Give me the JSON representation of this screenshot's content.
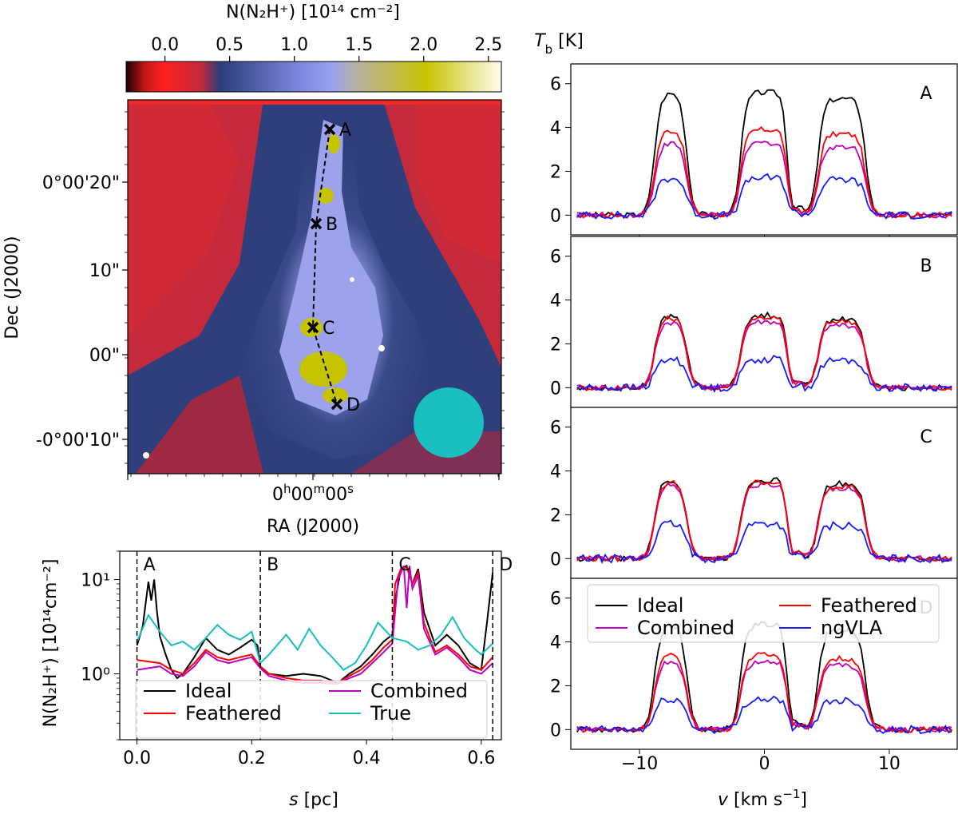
{
  "colorbar": {
    "label": "N(N2H+) [10^14 cm^-2]",
    "label_text": "N(N₂H⁺) [10¹⁴ cm⁻²]",
    "ticks": [
      "0.0",
      "0.5",
      "1.0",
      "1.5",
      "2.0",
      "2.5"
    ],
    "range": [
      -0.3,
      2.6
    ],
    "colors": [
      "#1a0000",
      "#e0232d",
      "#c42a3b",
      "#2b3d7a",
      "#9ba2f0",
      "#c6c400",
      "#fffdf0"
    ]
  },
  "map": {
    "ylabel": "Dec (J2000)",
    "xlabel": "RA (J2000)",
    "xtick": "0h00m00s",
    "yticks": [
      "0°00'20\"",
      "10\"",
      "00\"",
      "-0°00'10\""
    ],
    "markers": [
      "A",
      "B",
      "C",
      "D"
    ],
    "beam_color": "#1abfbf"
  },
  "chart_data": [
    {
      "type": "line",
      "panel": "column-density-cut",
      "xlabel": "s [pc]",
      "ylabel": "N(N2H+) [10^14 cm^-2]",
      "ylabel_text": "N(N₂H⁺) [10¹⁴cm⁻²]",
      "xlim": [
        -0.03,
        0.635
      ],
      "ylim": [
        0.2,
        20
      ],
      "yscale": "log",
      "xticks": [
        "0.0",
        "0.2",
        "0.4",
        "0.6"
      ],
      "yticks": [
        "10^0",
        "10^1"
      ],
      "ytick_text": [
        "10⁰",
        "10¹"
      ],
      "vlines": [
        {
          "x": 0.0,
          "label": "A"
        },
        {
          "x": 0.215,
          "label": "B"
        },
        {
          "x": 0.445,
          "label": "C"
        },
        {
          "x": 0.62,
          "label": "D"
        }
      ],
      "legend": "lower-center",
      "series": [
        {
          "name": "Ideal",
          "color": "#000000",
          "x": [
            0,
            0.01,
            0.02,
            0.025,
            0.03,
            0.035,
            0.04,
            0.05,
            0.06,
            0.07,
            0.08,
            0.1,
            0.12,
            0.14,
            0.16,
            0.18,
            0.2,
            0.21,
            0.215,
            0.23,
            0.26,
            0.29,
            0.32,
            0.34,
            0.35,
            0.37,
            0.39,
            0.41,
            0.43,
            0.445,
            0.45,
            0.46,
            0.47,
            0.48,
            0.49,
            0.5,
            0.52,
            0.54,
            0.56,
            0.58,
            0.6,
            0.61,
            0.62
          ],
          "y": [
            2.0,
            3.2,
            9.5,
            6.0,
            10,
            4.5,
            2.5,
            1.6,
            1.1,
            0.9,
            1.0,
            1.5,
            2.4,
            1.8,
            1.6,
            1.9,
            2.3,
            2.0,
            1.2,
            1.0,
            0.95,
            1.0,
            0.95,
            0.85,
            0.8,
            1.0,
            1.2,
            1.6,
            2.2,
            2.6,
            6.0,
            13,
            14,
            9,
            13,
            4.5,
            2.0,
            2.6,
            2.0,
            1.3,
            1.1,
            3.5,
            12
          ]
        },
        {
          "name": "Feathered",
          "color": "#ff0000",
          "x": [
            0,
            0.02,
            0.04,
            0.06,
            0.08,
            0.1,
            0.12,
            0.14,
            0.16,
            0.18,
            0.2,
            0.215,
            0.23,
            0.26,
            0.29,
            0.32,
            0.35,
            0.37,
            0.39,
            0.41,
            0.43,
            0.445,
            0.45,
            0.46,
            0.47,
            0.48,
            0.49,
            0.5,
            0.52,
            0.54,
            0.56,
            0.58,
            0.6,
            0.62
          ],
          "y": [
            1.4,
            1.35,
            1.3,
            1.1,
            1.0,
            1.3,
            1.8,
            1.5,
            1.4,
            1.5,
            1.6,
            1.2,
            1.0,
            0.9,
            0.85,
            0.85,
            0.8,
            0.95,
            1.1,
            1.4,
            1.9,
            2.3,
            9,
            13,
            13.5,
            9,
            12,
            3.5,
            1.7,
            2.0,
            1.6,
            1.2,
            1.1,
            1.5
          ]
        },
        {
          "name": "Combined",
          "color": "#bf00bf",
          "x": [
            0,
            0.02,
            0.04,
            0.06,
            0.08,
            0.1,
            0.12,
            0.14,
            0.16,
            0.18,
            0.2,
            0.215,
            0.23,
            0.26,
            0.29,
            0.32,
            0.35,
            0.37,
            0.39,
            0.41,
            0.43,
            0.445,
            0.455,
            0.465,
            0.47,
            0.475,
            0.48,
            0.49,
            0.5,
            0.52,
            0.54,
            0.56,
            0.58,
            0.6,
            0.62
          ],
          "y": [
            1.1,
            1.15,
            1.2,
            1.0,
            0.95,
            1.2,
            1.7,
            1.4,
            1.3,
            1.4,
            1.5,
            1.15,
            0.95,
            0.85,
            0.8,
            0.8,
            0.78,
            0.9,
            1.0,
            1.3,
            1.7,
            2.1,
            10,
            14,
            5,
            14,
            8,
            11,
            3.0,
            1.6,
            1.9,
            1.5,
            1.1,
            1.0,
            1.3
          ]
        },
        {
          "name": "True",
          "color": "#17bfbf",
          "x": [
            0,
            0.02,
            0.04,
            0.06,
            0.08,
            0.1,
            0.12,
            0.14,
            0.16,
            0.18,
            0.2,
            0.215,
            0.23,
            0.26,
            0.28,
            0.3,
            0.32,
            0.34,
            0.36,
            0.38,
            0.4,
            0.42,
            0.445,
            0.47,
            0.49,
            0.51,
            0.53,
            0.55,
            0.57,
            0.59,
            0.6,
            0.62
          ],
          "y": [
            2.2,
            4.2,
            2.8,
            2.0,
            2.2,
            1.8,
            2.4,
            3.3,
            2.6,
            2.3,
            2.8,
            1.3,
            1.6,
            2.6,
            1.8,
            3.0,
            2.0,
            1.5,
            1.1,
            1.3,
            2.0,
            3.5,
            2.4,
            2.2,
            1.8,
            2.0,
            2.6,
            4.0,
            2.4,
            1.8,
            1.6,
            2.1
          ]
        }
      ]
    },
    {
      "type": "line",
      "panel": "spectra",
      "xlabel": "v [km s^-1]",
      "xlabel_text": "v [km s⁻¹]",
      "ylabel": "Tb [K]",
      "xlim": [
        -15.5,
        15.5
      ],
      "ylim": [
        -0.9,
        6.9
      ],
      "xticks": [
        "−10",
        "0",
        "10"
      ],
      "yticks": [
        "0",
        "2",
        "4",
        "6"
      ],
      "legend": "top",
      "series_names": [
        "Ideal",
        "Combined",
        "Feathered",
        "ngVLA"
      ],
      "series_colors": [
        "#000000",
        "#bf00bf",
        "#ff0000",
        "#1a1aff"
      ],
      "panels": [
        {
          "label": "A",
          "peaks": {
            "Ideal": 5.6,
            "Combined": 3.3,
            "Feathered": 3.9,
            "ngVLA": 1.7
          }
        },
        {
          "label": "B",
          "peaks": {
            "Ideal": 3.3,
            "Combined": 3.0,
            "Feathered": 3.2,
            "ngVLA": 1.3
          }
        },
        {
          "label": "C",
          "peaks": {
            "Ideal": 3.6,
            "Combined": 3.4,
            "Feathered": 3.5,
            "ngVLA": 1.6
          }
        },
        {
          "label": "D",
          "peaks": {
            "Ideal": 4.8,
            "Combined": 3.1,
            "Feathered": 3.4,
            "ngVLA": 1.4
          }
        }
      ]
    }
  ]
}
